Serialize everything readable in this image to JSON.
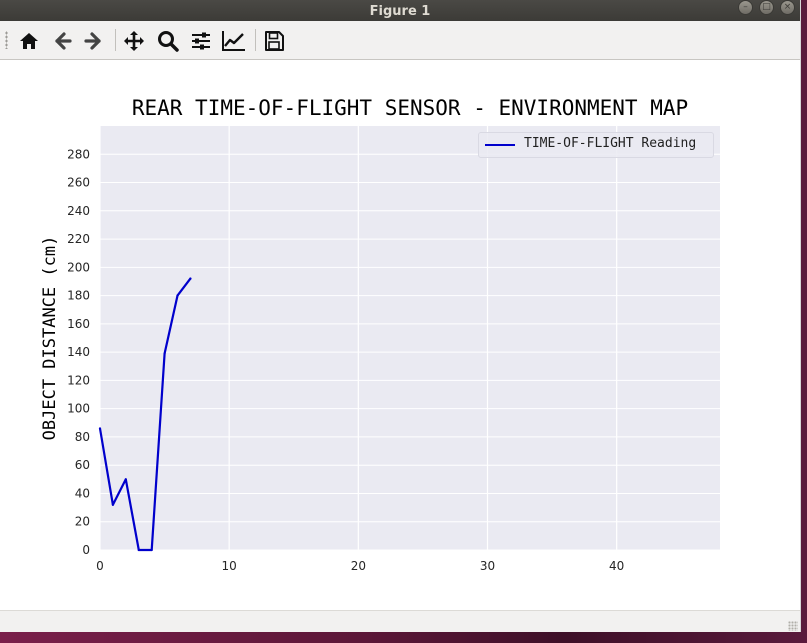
{
  "window": {
    "title": "Figure 1",
    "buttons": [
      "minimize",
      "maximize",
      "close"
    ]
  },
  "toolbar": {
    "icons": [
      "home-icon",
      "back-arrow-icon",
      "forward-arrow-icon",
      "pan-move-icon",
      "zoom-magnifier-icon",
      "configure-subplots-icon",
      "edit-axis-icon",
      "save-icon"
    ]
  },
  "colors": {
    "plot_background": "#eaeaf2",
    "grid": "#ffffff",
    "line": "#0000cc"
  },
  "chart_data": {
    "type": "line",
    "title": "REAR TIME-OF-FLIGHT SENSOR - ENVIRONMENT MAP",
    "xlabel": "",
    "ylabel": "OBJECT DISTANCE (cm)",
    "xlim": [
      0,
      48
    ],
    "ylim": [
      0,
      300
    ],
    "x_ticks": [
      0,
      10,
      20,
      30,
      40
    ],
    "y_ticks": [
      0,
      20,
      40,
      60,
      80,
      100,
      120,
      140,
      160,
      180,
      200,
      220,
      240,
      260,
      280
    ],
    "grid": true,
    "legend_position": "top-right",
    "series": [
      {
        "name": "TIME-OF-FLIGHT Reading",
        "color": "#0000cc",
        "x": [
          0,
          1,
          2,
          3,
          4,
          5,
          6,
          7
        ],
        "y": [
          86,
          32,
          50,
          0,
          0,
          139,
          180,
          192
        ]
      }
    ]
  }
}
